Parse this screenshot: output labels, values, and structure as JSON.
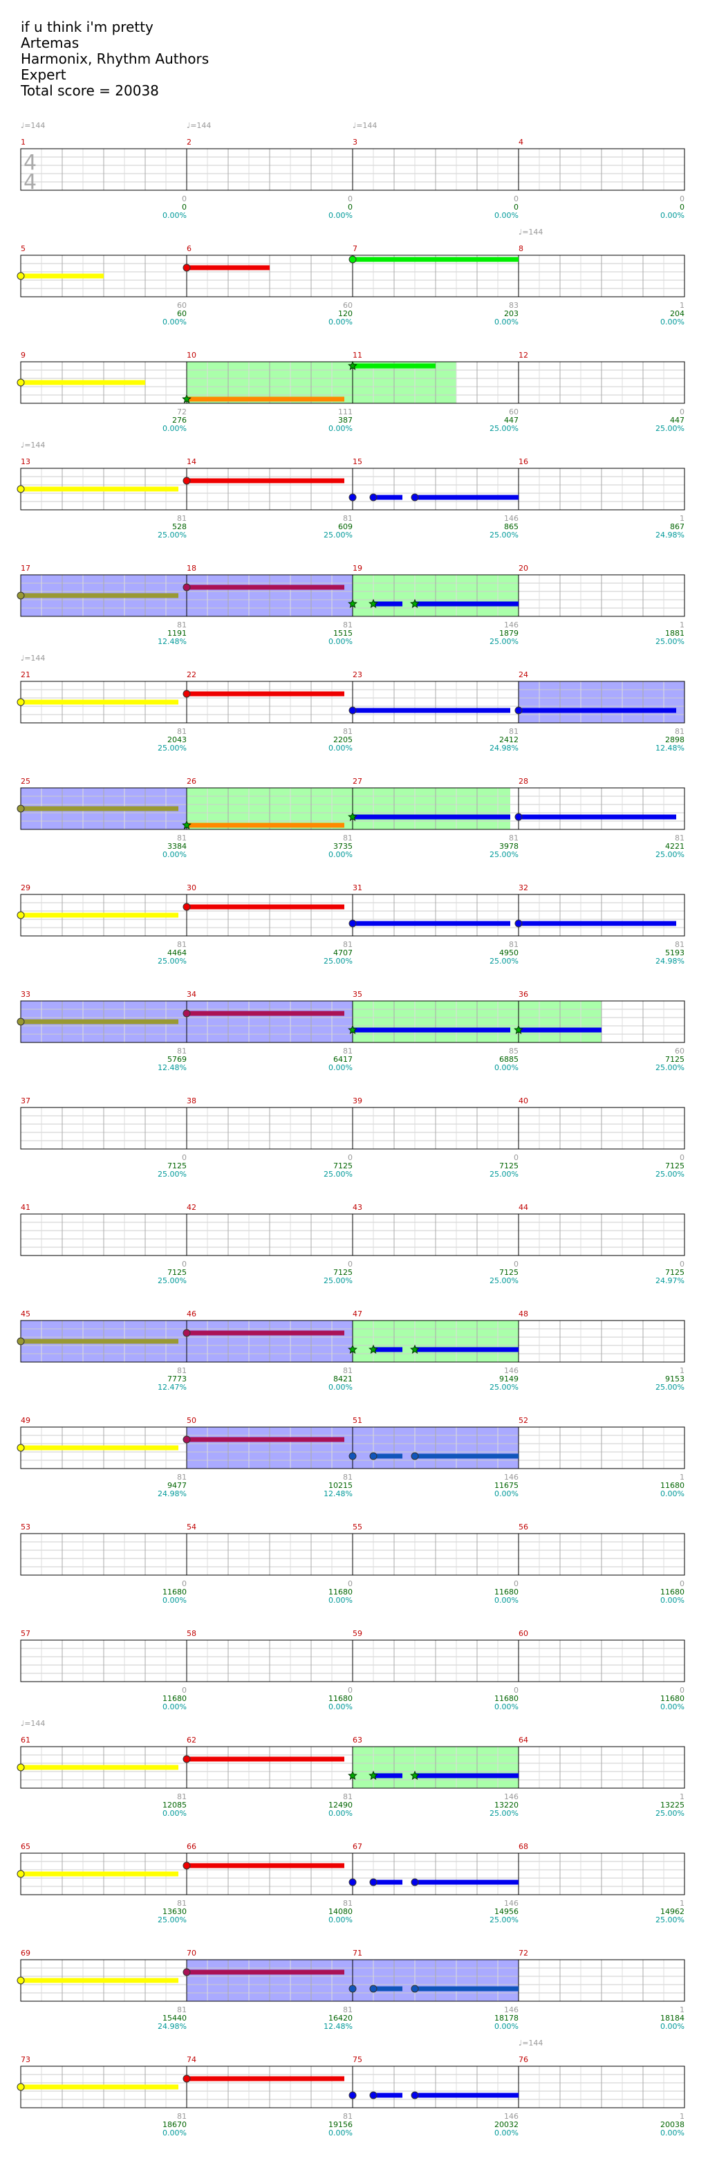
{
  "header": {
    "title": "if u think i'm pretty",
    "artist": "Artemas",
    "charter": "Harmonix, Rhythm Authors",
    "difficulty": "Expert",
    "total_score": "Total score = 20038"
  },
  "time_signature": {
    "top": "4",
    "bottom": "4"
  },
  "tempo_label": "♩=144",
  "colors": {
    "green": "#00ee00",
    "red": "#ee0000",
    "yellow": "#ffff00",
    "blue": "#0000ee",
    "orange": "#ff8800",
    "star_power": "#00aa00",
    "overdrive_fill": "#aaffaa",
    "solo_fill": "#aaaaff",
    "measure_number": "#c00000",
    "score_green": "#006400",
    "percent_teal": "#009999",
    "gray": "#999999"
  },
  "chart_data": {
    "type": "table",
    "description_units": "measures are 1-indexed; note positions in beats (0-4) within measure",
    "rows": [
      {
        "tempos": [
          {
            "m": 1,
            "b": 0
          },
          {
            "m": 2,
            "b": 0
          },
          {
            "m": 3,
            "b": 0
          }
        ],
        "labels": [
          [
            "0",
            "0",
            "0.00%"
          ],
          [
            "0",
            "0",
            "0.00%"
          ],
          [
            "0",
            "0",
            "0.00%"
          ],
          [
            "0",
            "0",
            "0.00%"
          ]
        ]
      },
      {
        "tempos": [
          {
            "m": 8,
            "b": 0
          }
        ],
        "labels": [
          [
            "60",
            "60",
            "0.00%"
          ],
          [
            "60",
            "120",
            "0.00%"
          ],
          [
            "83",
            "203",
            "0.00%"
          ],
          [
            "1",
            "204",
            "0.00%"
          ]
        ]
      },
      {
        "tempos": [],
        "labels": [
          [
            "72",
            "276",
            "0.00%"
          ],
          [
            "111",
            "387",
            "0.00%"
          ],
          [
            "60",
            "447",
            "25.00%"
          ],
          [
            "0",
            "447",
            "25.00%"
          ]
        ]
      },
      {
        "tempos": [
          {
            "m": 13,
            "b": 0
          }
        ],
        "labels": [
          [
            "81",
            "528",
            "25.00%"
          ],
          [
            "81",
            "609",
            "25.00%"
          ],
          [
            "146",
            "865",
            "25.00%"
          ],
          [
            "1",
            "867",
            "24.98%"
          ]
        ]
      },
      {
        "tempos": [],
        "labels": [
          [
            "81",
            "1191",
            "12.48%"
          ],
          [
            "81",
            "1515",
            "0.00%"
          ],
          [
            "146",
            "1879",
            "25.00%"
          ],
          [
            "1",
            "1881",
            "25.00%"
          ]
        ]
      },
      {
        "tempos": [
          {
            "m": 21,
            "b": 0
          }
        ],
        "labels": [
          [
            "81",
            "2043",
            "25.00%"
          ],
          [
            "81",
            "2205",
            "0.00%"
          ],
          [
            "81",
            "2412",
            "24.98%"
          ],
          [
            "81",
            "2898",
            "12.48%"
          ]
        ]
      },
      {
        "tempos": [],
        "labels": [
          [
            "81",
            "3384",
            "0.00%"
          ],
          [
            "81",
            "3735",
            "0.00%"
          ],
          [
            "81",
            "3978",
            "25.00%"
          ],
          [
            "81",
            "4221",
            "25.00%"
          ]
        ]
      },
      {
        "tempos": [],
        "labels": [
          [
            "81",
            "4464",
            "25.00%"
          ],
          [
            "81",
            "4707",
            "25.00%"
          ],
          [
            "81",
            "4950",
            "25.00%"
          ],
          [
            "81",
            "5193",
            "24.98%"
          ]
        ]
      },
      {
        "tempos": [],
        "labels": [
          [
            "81",
            "5769",
            "12.48%"
          ],
          [
            "81",
            "6417",
            "0.00%"
          ],
          [
            "85",
            "6885",
            "0.00%"
          ],
          [
            "60",
            "7125",
            "25.00%"
          ]
        ]
      },
      {
        "tempos": [],
        "labels": [
          [
            "0",
            "7125",
            "25.00%"
          ],
          [
            "0",
            "7125",
            "25.00%"
          ],
          [
            "0",
            "7125",
            "25.00%"
          ],
          [
            "0",
            "7125",
            "25.00%"
          ]
        ]
      },
      {
        "tempos": [],
        "labels": [
          [
            "0",
            "7125",
            "25.00%"
          ],
          [
            "0",
            "7125",
            "25.00%"
          ],
          [
            "0",
            "7125",
            "25.00%"
          ],
          [
            "0",
            "7125",
            "24.97%"
          ]
        ]
      },
      {
        "tempos": [],
        "labels": [
          [
            "81",
            "7773",
            "12.47%"
          ],
          [
            "81",
            "8421",
            "0.00%"
          ],
          [
            "146",
            "9149",
            "25.00%"
          ],
          [
            "1",
            "9153",
            "25.00%"
          ]
        ]
      },
      {
        "tempos": [],
        "labels": [
          [
            "81",
            "9477",
            "24.98%"
          ],
          [
            "81",
            "10215",
            "12.48%"
          ],
          [
            "146",
            "11675",
            "0.00%"
          ],
          [
            "1",
            "11680",
            "0.00%"
          ]
        ]
      },
      {
        "tempos": [],
        "labels": [
          [
            "0",
            "11680",
            "0.00%"
          ],
          [
            "0",
            "11680",
            "0.00%"
          ],
          [
            "0",
            "11680",
            "0.00%"
          ],
          [
            "0",
            "11680",
            "0.00%"
          ]
        ]
      },
      {
        "tempos": [],
        "labels": [
          [
            "0",
            "11680",
            "0.00%"
          ],
          [
            "0",
            "11680",
            "0.00%"
          ],
          [
            "0",
            "11680",
            "0.00%"
          ],
          [
            "0",
            "11680",
            "0.00%"
          ]
        ]
      },
      {
        "tempos": [
          {
            "m": 61,
            "b": 0
          }
        ],
        "labels": [
          [
            "81",
            "12085",
            "0.00%"
          ],
          [
            "81",
            "12490",
            "0.00%"
          ],
          [
            "146",
            "13220",
            "25.00%"
          ],
          [
            "1",
            "13225",
            "25.00%"
          ]
        ]
      },
      {
        "tempos": [],
        "labels": [
          [
            "81",
            "13630",
            "25.00%"
          ],
          [
            "81",
            "14080",
            "0.00%"
          ],
          [
            "146",
            "14956",
            "25.00%"
          ],
          [
            "1",
            "14962",
            "25.00%"
          ]
        ]
      },
      {
        "tempos": [],
        "labels": [
          [
            "81",
            "15440",
            "24.98%"
          ],
          [
            "81",
            "16420",
            "12.48%"
          ],
          [
            "146",
            "18178",
            "0.00%"
          ],
          [
            "1",
            "18184",
            "0.00%"
          ]
        ]
      },
      {
        "tempos": [
          {
            "m": 76,
            "b": 0
          }
        ],
        "labels": [
          [
            "81",
            "18670",
            "0.00%"
          ],
          [
            "81",
            "19156",
            "0.00%"
          ],
          [
            "146",
            "20032",
            "0.00%"
          ],
          [
            "1",
            "20038",
            "0.00%"
          ]
        ]
      }
    ],
    "fills": [
      {
        "row": 2,
        "type": "od",
        "from": [
          1,
          0
        ],
        "to": [
          2,
          2.5
        ]
      },
      {
        "row": 4,
        "type": "solo",
        "from": [
          0,
          0
        ],
        "to": [
          1,
          4
        ]
      },
      {
        "row": 4,
        "type": "od",
        "from": [
          2,
          0
        ],
        "to": [
          2,
          4
        ]
      },
      {
        "row": 5,
        "type": "solo",
        "from": [
          3,
          0
        ],
        "to": [
          3,
          4
        ]
      },
      {
        "row": 6,
        "type": "solo",
        "from": [
          0,
          0
        ],
        "to": [
          0,
          4
        ]
      },
      {
        "row": 6,
        "type": "od",
        "from": [
          1,
          0
        ],
        "to": [
          2,
          3.8
        ]
      },
      {
        "row": 8,
        "type": "solo",
        "from": [
          0,
          0
        ],
        "to": [
          1,
          4
        ]
      },
      {
        "row": 8,
        "type": "od",
        "from": [
          2,
          0
        ],
        "to": [
          3,
          2
        ]
      },
      {
        "row": 11,
        "type": "solo",
        "from": [
          0,
          0
        ],
        "to": [
          1,
          4
        ]
      },
      {
        "row": 11,
        "type": "od",
        "from": [
          2,
          0
        ],
        "to": [
          2,
          4
        ]
      },
      {
        "row": 12,
        "type": "solo",
        "from": [
          1,
          0
        ],
        "to": [
          2,
          4
        ]
      },
      {
        "row": 15,
        "type": "od",
        "from": [
          2,
          0
        ],
        "to": [
          2,
          4
        ]
      },
      {
        "row": 17,
        "type": "solo",
        "from": [
          1,
          0
        ],
        "to": [
          2,
          4
        ]
      }
    ],
    "notes": [
      {
        "row": 1,
        "lane": "yellow",
        "m": 0,
        "b": 0,
        "len": 2
      },
      {
        "row": 1,
        "lane": "red",
        "m": 1,
        "b": 0,
        "len": 2
      },
      {
        "row": 1,
        "lane": "green",
        "m": 2,
        "b": 0,
        "len": 4
      },
      {
        "row": 2,
        "lane": "yellow",
        "m": 0,
        "b": 0,
        "len": 3
      },
      {
        "row": 2,
        "lane": "orange",
        "m": 1,
        "b": 0,
        "len": 3.8,
        "star": true
      },
      {
        "row": 2,
        "lane": "green",
        "m": 2,
        "b": 0,
        "len": 2.0,
        "star": true
      },
      {
        "row": 3,
        "lane": "yellow",
        "m": 0,
        "b": 0,
        "len": 3.8
      },
      {
        "row": 3,
        "lane": "red",
        "m": 1,
        "b": 0,
        "len": 3.8
      },
      {
        "row": 3,
        "lane": "blue",
        "m": 2,
        "b": 0,
        "len": 0
      },
      {
        "row": 3,
        "lane": "blue",
        "m": 2,
        "b": 0.5,
        "len": 0.7
      },
      {
        "row": 3,
        "lane": "blue",
        "m": 2,
        "b": 1.5,
        "len": 2.5
      },
      {
        "row": 4,
        "lane": "yellow",
        "m": 0,
        "b": 0,
        "len": 3.8,
        "mix": true
      },
      {
        "row": 4,
        "lane": "red",
        "m": 1,
        "b": 0,
        "len": 3.8,
        "mix": true
      },
      {
        "row": 4,
        "lane": "blue",
        "m": 2,
        "b": 0,
        "len": 0,
        "star": true
      },
      {
        "row": 4,
        "lane": "blue",
        "m": 2,
        "b": 0.5,
        "len": 0.7,
        "star": true
      },
      {
        "row": 4,
        "lane": "blue",
        "m": 2,
        "b": 1.5,
        "len": 2.5,
        "star": true
      },
      {
        "row": 5,
        "lane": "yellow",
        "m": 0,
        "b": 0,
        "len": 3.8
      },
      {
        "row": 5,
        "lane": "red",
        "m": 1,
        "b": 0,
        "len": 3.8
      },
      {
        "row": 5,
        "lane": "blue",
        "m": 2,
        "b": 0,
        "len": 3.8
      },
      {
        "row": 5,
        "lane": "blue",
        "m": 3,
        "b": 0,
        "len": 3.8
      },
      {
        "row": 6,
        "lane": "yellow",
        "m": 0,
        "b": 0,
        "len": 3.8,
        "mix": true
      },
      {
        "row": 6,
        "lane": "orange",
        "m": 1,
        "b": 0,
        "len": 3.8,
        "star": true
      },
      {
        "row": 6,
        "lane": "blue",
        "m": 2,
        "b": 0,
        "len": 3.8,
        "star": true
      },
      {
        "row": 6,
        "lane": "blue",
        "m": 3,
        "b": 0,
        "len": 3.8
      },
      {
        "row": 7,
        "lane": "yellow",
        "m": 0,
        "b": 0,
        "len": 3.8
      },
      {
        "row": 7,
        "lane": "red",
        "m": 1,
        "b": 0,
        "len": 3.8
      },
      {
        "row": 7,
        "lane": "blue",
        "m": 2,
        "b": 0,
        "len": 3.8
      },
      {
        "row": 7,
        "lane": "blue",
        "m": 3,
        "b": 0,
        "len": 3.8
      },
      {
        "row": 8,
        "lane": "yellow",
        "m": 0,
        "b": 0,
        "len": 3.8,
        "mix": true
      },
      {
        "row": 8,
        "lane": "red",
        "m": 1,
        "b": 0,
        "len": 3.8,
        "mix": true
      },
      {
        "row": 8,
        "lane": "blue",
        "m": 2,
        "b": 0,
        "len": 3.8,
        "star": true
      },
      {
        "row": 8,
        "lane": "blue",
        "m": 3,
        "b": 0,
        "len": 2.0,
        "star": true
      },
      {
        "row": 11,
        "lane": "yellow",
        "m": 0,
        "b": 0,
        "len": 3.8,
        "mix": true
      },
      {
        "row": 11,
        "lane": "red",
        "m": 1,
        "b": 0,
        "len": 3.8,
        "mix": true
      },
      {
        "row": 11,
        "lane": "blue",
        "m": 2,
        "b": 0,
        "len": 0,
        "star": true
      },
      {
        "row": 11,
        "lane": "blue",
        "m": 2,
        "b": 0.5,
        "len": 0.7,
        "star": true
      },
      {
        "row": 11,
        "lane": "blue",
        "m": 2,
        "b": 1.5,
        "len": 2.5,
        "star": true
      },
      {
        "row": 12,
        "lane": "yellow",
        "m": 0,
        "b": 0,
        "len": 3.8
      },
      {
        "row": 12,
        "lane": "red",
        "m": 1,
        "b": 0,
        "len": 3.8,
        "mix": true
      },
      {
        "row": 12,
        "lane": "blue",
        "m": 2,
        "b": 0,
        "len": 0,
        "mix": true
      },
      {
        "row": 12,
        "lane": "blue",
        "m": 2,
        "b": 0.5,
        "len": 0.7,
        "mix": true
      },
      {
        "row": 12,
        "lane": "blue",
        "m": 2,
        "b": 1.5,
        "len": 2.5,
        "mix": true
      },
      {
        "row": 15,
        "lane": "yellow",
        "m": 0,
        "b": 0,
        "len": 3.8
      },
      {
        "row": 15,
        "lane": "red",
        "m": 1,
        "b": 0,
        "len": 3.8
      },
      {
        "row": 15,
        "lane": "blue",
        "m": 2,
        "b": 0,
        "len": 0,
        "star": true
      },
      {
        "row": 15,
        "lane": "blue",
        "m": 2,
        "b": 0.5,
        "len": 0.7,
        "star": true
      },
      {
        "row": 15,
        "lane": "blue",
        "m": 2,
        "b": 1.5,
        "len": 2.5,
        "star": true
      },
      {
        "row": 16,
        "lane": "yellow",
        "m": 0,
        "b": 0,
        "len": 3.8
      },
      {
        "row": 16,
        "lane": "red",
        "m": 1,
        "b": 0,
        "len": 3.8
      },
      {
        "row": 16,
        "lane": "blue",
        "m": 2,
        "b": 0,
        "len": 0
      },
      {
        "row": 16,
        "lane": "blue",
        "m": 2,
        "b": 0.5,
        "len": 0.7
      },
      {
        "row": 16,
        "lane": "blue",
        "m": 2,
        "b": 1.5,
        "len": 2.5
      },
      {
        "row": 17,
        "lane": "yellow",
        "m": 0,
        "b": 0,
        "len": 3.8
      },
      {
        "row": 17,
        "lane": "red",
        "m": 1,
        "b": 0,
        "len": 3.8,
        "mix": true
      },
      {
        "row": 17,
        "lane": "blue",
        "m": 2,
        "b": 0,
        "len": 0,
        "mix": true
      },
      {
        "row": 17,
        "lane": "blue",
        "m": 2,
        "b": 0.5,
        "len": 0.7,
        "mix": true
      },
      {
        "row": 17,
        "lane": "blue",
        "m": 2,
        "b": 1.5,
        "len": 2.5,
        "mix": true
      },
      {
        "row": 18,
        "lane": "yellow",
        "m": 0,
        "b": 0,
        "len": 3.8
      },
      {
        "row": 18,
        "lane": "red",
        "m": 1,
        "b": 0,
        "len": 3.8
      },
      {
        "row": 18,
        "lane": "blue",
        "m": 2,
        "b": 0,
        "len": 0
      },
      {
        "row": 18,
        "lane": "blue",
        "m": 2,
        "b": 0.5,
        "len": 0.7
      },
      {
        "row": 18,
        "lane": "blue",
        "m": 2,
        "b": 1.5,
        "len": 2.5
      }
    ]
  }
}
